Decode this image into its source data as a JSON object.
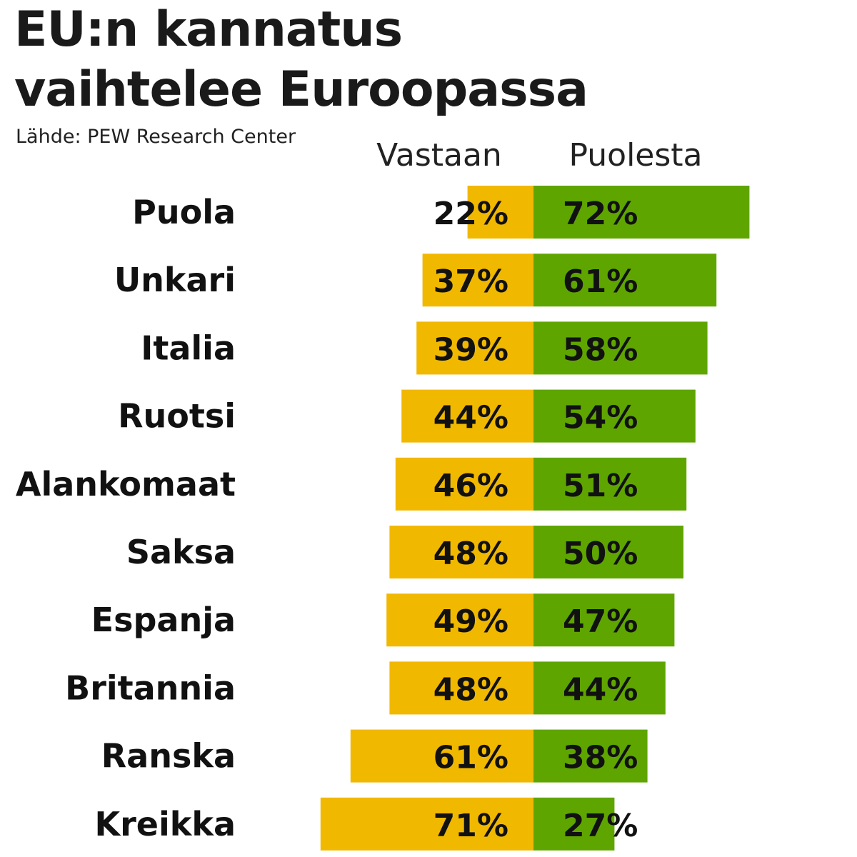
{
  "header": {
    "title_line1": "EU:n kannatus",
    "title_line2": "vaihtelee Euroopassa",
    "source": "Lähde: PEW Research Center"
  },
  "chart_data": {
    "type": "bar",
    "orientation": "horizontal-diverging",
    "title": "EU:n kannatus vaihtelee Euroopassa",
    "source": "Lähde: PEW Research Center",
    "categories": [
      "Puola",
      "Unkari",
      "Italia",
      "Ruotsi",
      "Alankomaat",
      "Saksa",
      "Espanja",
      "Britannia",
      "Ranska",
      "Kreikka"
    ],
    "series": [
      {
        "name": "Vastaan",
        "color": "#f1b800",
        "values": [
          22,
          37,
          39,
          44,
          46,
          48,
          49,
          48,
          61,
          71
        ]
      },
      {
        "name": "Puolesta",
        "color": "#5fa500",
        "values": [
          72,
          61,
          58,
          54,
          51,
          50,
          47,
          44,
          38,
          27
        ]
      }
    ],
    "value_suffix": "%",
    "legend": "top"
  }
}
